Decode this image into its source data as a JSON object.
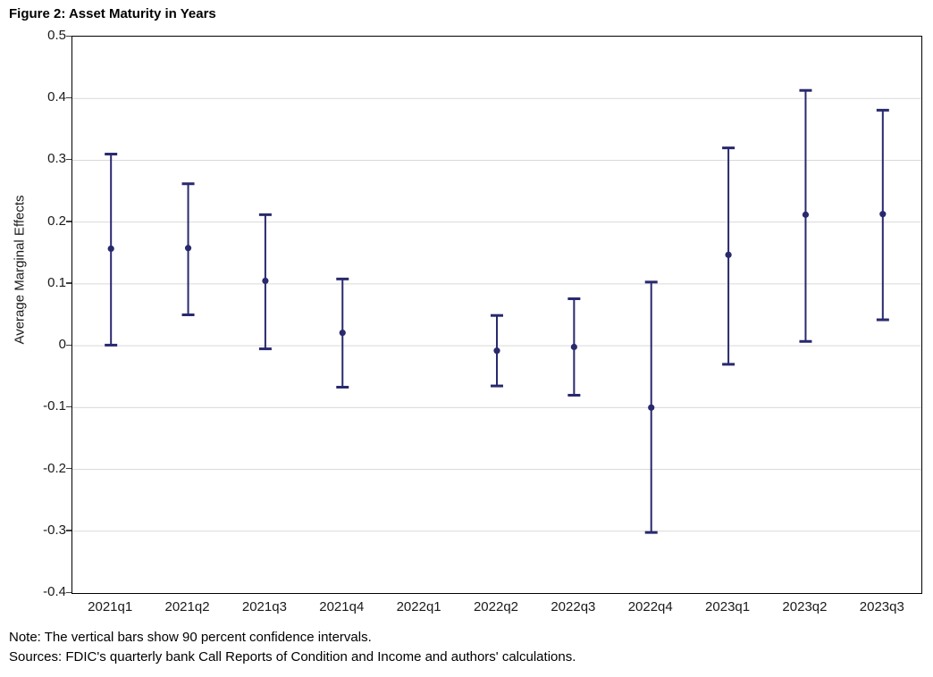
{
  "chart_data": {
    "type": "scatter",
    "subtype": "errorbar",
    "title": "Figure 2: Asset Maturity in Years",
    "xlabel": "",
    "ylabel": "Average Marginal Effects",
    "ylim": [
      -0.4,
      0.5
    ],
    "y_tick_labels": [
      "0.5",
      "0.4",
      "0.3",
      "0.2",
      "0.1",
      "0",
      "-0.1",
      "-0.2",
      "-0.3",
      "-0.4"
    ],
    "y_tick_values": [
      0.5,
      0.4,
      0.3,
      0.2,
      0.1,
      0,
      -0.1,
      -0.2,
      -0.3,
      -0.4
    ],
    "grid": true,
    "legend_position": "none",
    "categories": [
      "2021q1",
      "2021q2",
      "2021q3",
      "2021q4",
      "2022q1",
      "2022q2",
      "2022q3",
      "2022q4",
      "2023q1",
      "2023q2",
      "2023q3"
    ],
    "series": [
      {
        "name": "Average Marginal Effects with 90 percent confidence intervals",
        "estimates": [
          0.157,
          0.158,
          0.105,
          0.021,
          null,
          -0.008,
          -0.002,
          -0.1,
          0.147,
          0.212,
          0.213
        ],
        "ci_low": [
          0.001,
          0.05,
          -0.005,
          -0.067,
          null,
          -0.065,
          -0.08,
          -0.302,
          -0.03,
          0.007,
          0.042
        ],
        "ci_high": [
          0.31,
          0.262,
          0.212,
          0.108,
          null,
          0.049,
          0.076,
          0.103,
          0.32,
          0.413,
          0.381
        ]
      }
    ],
    "colors": {
      "marker": "#29296e",
      "gridline": "#d9d9d9",
      "axis_border": "#000000",
      "text": "#1a1a1a"
    }
  },
  "notes": {
    "note": "Note: The vertical bars show 90 percent confidence intervals.",
    "sources": "Sources: FDIC's quarterly bank Call Reports of Condition and Income and authors' calculations."
  }
}
